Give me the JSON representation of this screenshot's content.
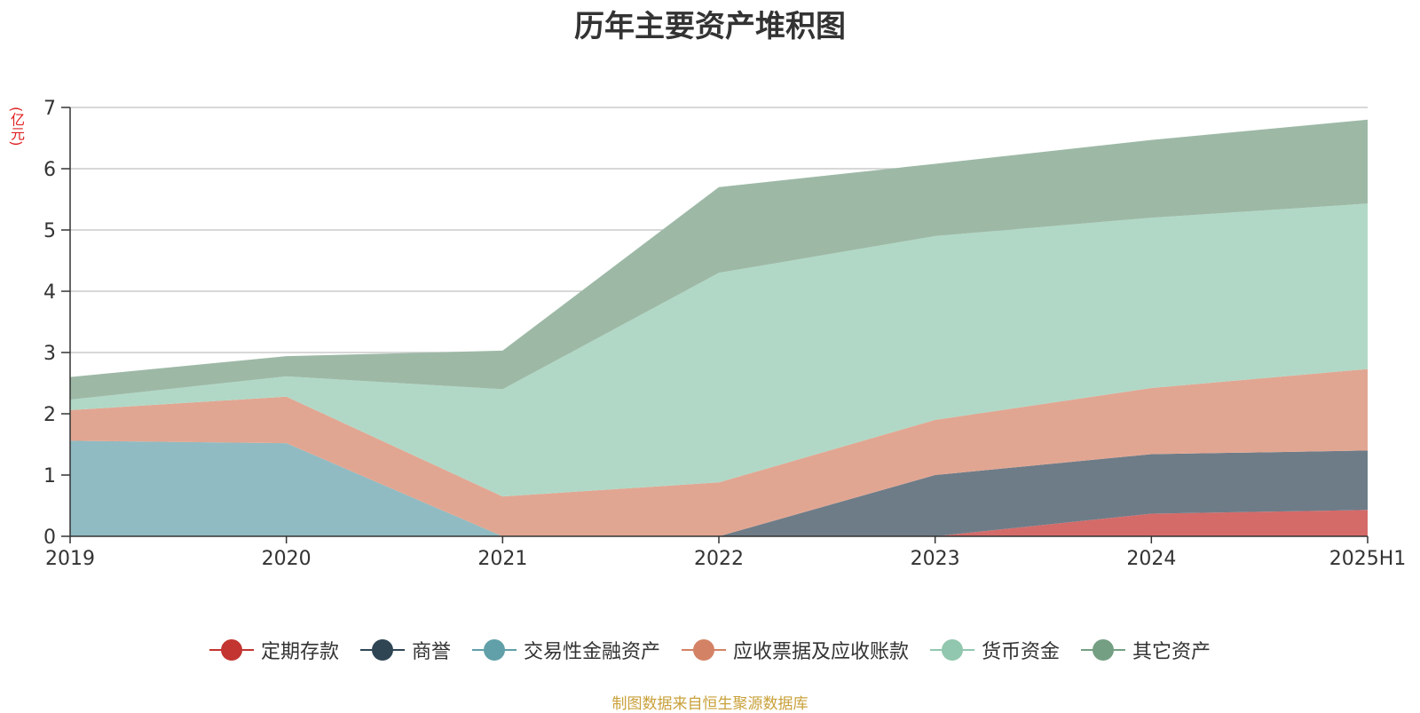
{
  "chart_data": {
    "type": "area",
    "stacked": true,
    "title": "历年主要资产堆积图",
    "ylabel": "(亿元)",
    "ylim": [
      0,
      7
    ],
    "yticks": [
      "0",
      "1",
      "2",
      "3",
      "4",
      "5",
      "6",
      "7"
    ],
    "categories": [
      "2019",
      "2020",
      "2021",
      "2022",
      "2023",
      "2024",
      "2025H1"
    ],
    "series": [
      {
        "name": "定期存款",
        "color": "#c23531",
        "fill": "#d46b69",
        "values": [
          0,
          0,
          0,
          0,
          0,
          0.37,
          0.43
        ]
      },
      {
        "name": "商誉",
        "color": "#2f4554",
        "fill": "#6e7c88",
        "values": [
          0,
          0,
          0,
          0,
          1.0,
          0.97,
          0.97
        ]
      },
      {
        "name": "交易性金融资产",
        "color": "#61a0a8",
        "fill": "#90bbc2",
        "values": [
          1.56,
          1.52,
          0,
          0,
          0,
          0,
          0
        ]
      },
      {
        "name": "应收票据及应收账款",
        "color": "#d48265",
        "fill": "#e1a692",
        "values": [
          0.5,
          0.76,
          0.65,
          0.88,
          0.9,
          1.08,
          1.33
        ]
      },
      {
        "name": "货币资金",
        "color": "#91c7ae",
        "fill": "#b1d8c6",
        "values": [
          0.17,
          0.33,
          1.75,
          3.42,
          3.0,
          2.78,
          2.7
        ]
      },
      {
        "name": "其它资产",
        "color": "#749f83",
        "fill": "#9db9a6",
        "values": [
          0.37,
          0.33,
          0.63,
          1.4,
          1.18,
          1.27,
          1.37
        ]
      }
    ],
    "source": "制图数据来自恒生聚源数据库"
  }
}
